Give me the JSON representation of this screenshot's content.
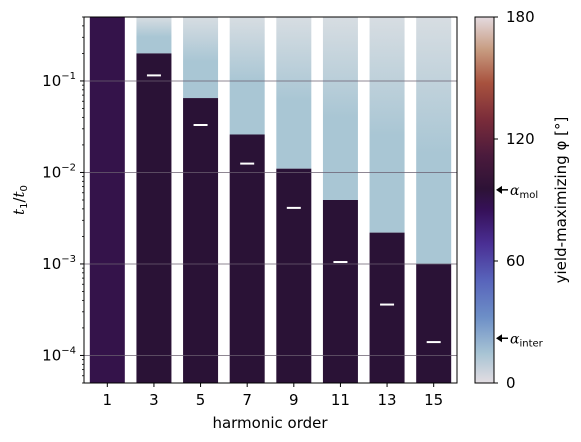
{
  "chart_data": {
    "type": "heatmap",
    "categories": [
      "1",
      "3",
      "5",
      "7",
      "9",
      "11",
      "13",
      "15"
    ],
    "xlabel": "harmonic order",
    "ylabel_main": "t",
    "ylabel_sub_num": "1",
    "ylabel_sub_den": "0",
    "ylabel_sep": "/",
    "yscale": "log",
    "ylim": [
      5e-05,
      0.5
    ],
    "yticks": [
      {
        "value": 0.1,
        "base": "10",
        "exp": "−1"
      },
      {
        "value": 0.01,
        "base": "10",
        "exp": "−2"
      },
      {
        "value": 0.001,
        "base": "10",
        "exp": "−3"
      },
      {
        "value": 0.0001,
        "base": "10",
        "exp": "−4"
      }
    ],
    "grid": true,
    "columns": [
      {
        "order": "1",
        "boundary": 0.5,
        "marker": null
      },
      {
        "order": "3",
        "boundary": 0.2,
        "marker": 0.115
      },
      {
        "order": "5",
        "boundary": 0.065,
        "marker": 0.033
      },
      {
        "order": "7",
        "boundary": 0.026,
        "marker": 0.0125
      },
      {
        "order": "9",
        "boundary": 0.011,
        "marker": 0.0041
      },
      {
        "order": "11",
        "boundary": 0.005,
        "marker": 0.00105
      },
      {
        "order": "13",
        "boundary": 0.0022,
        "marker": 0.00036
      },
      {
        "order": "15",
        "boundary": 0.001,
        "marker": 0.00014
      }
    ],
    "upper_region_phi": 22,
    "lower_region_phi": 95,
    "colorbar": {
      "label": "yield-maximizing φ [°]",
      "range": [
        0,
        180
      ],
      "ticks": [
        "0",
        "60",
        "120",
        "180"
      ],
      "tick_values": [
        0,
        60,
        120,
        180
      ],
      "annotations": [
        {
          "value": 95,
          "label_base": "α",
          "label_sub": "mol"
        },
        {
          "value": 22,
          "label_base": "α",
          "label_sub": "inter"
        }
      ]
    },
    "colors": {
      "dark_region": "#2a1236",
      "light_region": "#a9c6d4",
      "column_one": "#34134a",
      "grid": "#6a5f70",
      "marker": "#ffffff"
    }
  }
}
